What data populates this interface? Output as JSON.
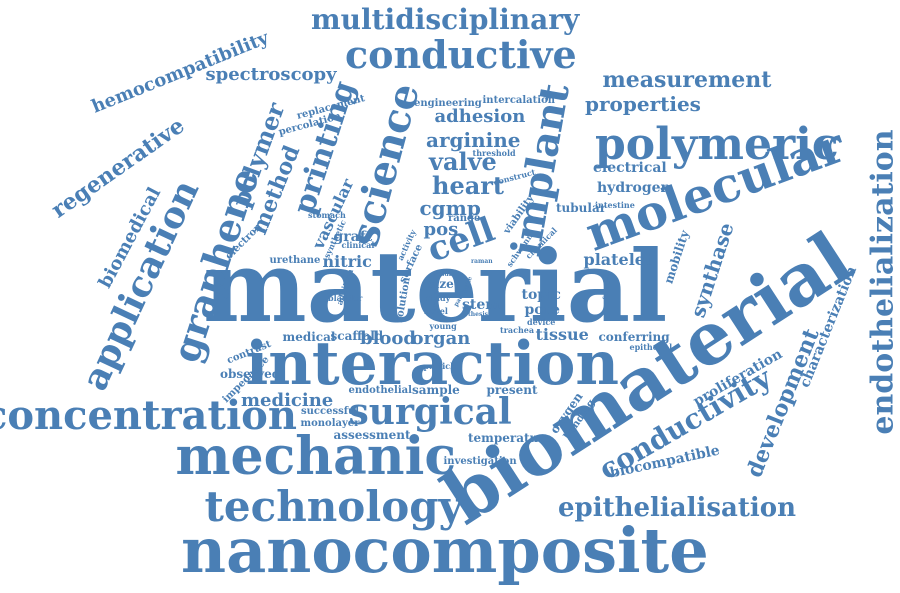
{
  "color": "#4a7fb5",
  "words": [
    {
      "key": "material",
      "text": "material"
    },
    {
      "key": "biomaterial",
      "text": "biomaterial"
    },
    {
      "key": "nanocomposite",
      "text": "nanocomposite"
    },
    {
      "key": "interaction",
      "text": "interaction"
    },
    {
      "key": "mechanic",
      "text": "mechanic"
    },
    {
      "key": "molecular",
      "text": "molecular"
    },
    {
      "key": "polymeric",
      "text": "polymeric"
    },
    {
      "key": "technology",
      "text": "technology"
    },
    {
      "key": "concentration",
      "text": "concentration"
    },
    {
      "key": "graphene",
      "text": "graphene"
    },
    {
      "key": "application",
      "text": "application"
    },
    {
      "key": "conductive",
      "text": "conductive"
    },
    {
      "key": "science",
      "text": "science"
    },
    {
      "key": "implant",
      "text": "implant"
    },
    {
      "key": "surgical",
      "text": "surgical"
    },
    {
      "key": "endothelialization",
      "text": "endothelialization"
    },
    {
      "key": "multidisciplinary",
      "text": "multidisciplinary"
    },
    {
      "key": "epithelialisation",
      "text": "epithelialisation"
    },
    {
      "key": "conductivity",
      "text": "conductivity"
    },
    {
      "key": "development",
      "text": "development"
    },
    {
      "key": "printing",
      "text": "printing"
    },
    {
      "key": "cell",
      "text": "cell"
    },
    {
      "key": "measurement",
      "text": "measurement"
    },
    {
      "key": "properties",
      "text": "properties"
    },
    {
      "key": "polymer",
      "text": "polymer"
    },
    {
      "key": "method",
      "text": "method"
    },
    {
      "key": "regenerative",
      "text": "regenerative"
    },
    {
      "key": "hemocompatibility",
      "text": "hemocompatibility"
    },
    {
      "key": "spectroscopy",
      "text": "spectroscopy"
    },
    {
      "key": "biomedical",
      "text": "biomedical"
    },
    {
      "key": "heart",
      "text": "heart"
    },
    {
      "key": "valve",
      "text": "valve"
    },
    {
      "key": "adhesion",
      "text": "adhesion"
    },
    {
      "key": "arginine",
      "text": "arginine"
    },
    {
      "key": "cgmp",
      "text": "cgmp"
    },
    {
      "key": "medicine",
      "text": "medicine"
    },
    {
      "key": "blood",
      "text": "blood"
    },
    {
      "key": "organ",
      "text": "organ"
    },
    {
      "key": "synthase",
      "text": "synthase"
    },
    {
      "key": "vascular",
      "text": "vascular"
    },
    {
      "key": "electrical",
      "text": "electrical"
    },
    {
      "key": "hydrogen",
      "text": "hydrogen"
    },
    {
      "key": "platelet",
      "text": "platelet"
    },
    {
      "key": "tissue",
      "text": "tissue"
    },
    {
      "key": "stem",
      "text": "stem"
    },
    {
      "key": "pore",
      "text": "pore"
    },
    {
      "key": "topic",
      "text": "topic"
    },
    {
      "key": "pos",
      "text": "pos"
    },
    {
      "key": "nitric",
      "text": "nitric"
    },
    {
      "key": "graft",
      "text": "graft"
    },
    {
      "key": "size",
      "text": "size"
    },
    {
      "key": "conferring",
      "text": "conferring"
    },
    {
      "key": "biocompatible",
      "text": "biocompatible"
    },
    {
      "key": "proliferation",
      "text": "proliferation"
    },
    {
      "key": "characterization",
      "text": "characterization"
    },
    {
      "key": "mobility",
      "text": "mobility"
    },
    {
      "key": "temperature",
      "text": "temperature"
    },
    {
      "key": "assessment",
      "text": "assessment"
    },
    {
      "key": "investigation",
      "text": "investigation"
    },
    {
      "key": "medical",
      "text": "medical"
    },
    {
      "key": "scaffold",
      "text": "scaffold"
    },
    {
      "key": "sample",
      "text": "sample"
    },
    {
      "key": "present",
      "text": "present"
    },
    {
      "key": "endothelial",
      "text": "endothelial"
    },
    {
      "key": "successful",
      "text": "successful"
    },
    {
      "key": "monolayer",
      "text": "monolayer"
    },
    {
      "key": "contrast",
      "text": "contrast"
    },
    {
      "key": "observed",
      "text": "observed"
    },
    {
      "key": "impedance",
      "text": "impedance"
    },
    {
      "key": "electron",
      "text": "electron"
    },
    {
      "key": "urethane",
      "text": "urethane"
    },
    {
      "key": "tubular",
      "text": "tubular"
    },
    {
      "key": "oxygen",
      "text": "oxygen"
    },
    {
      "key": "bonding",
      "text": "bonding"
    },
    {
      "key": "replacement",
      "text": "replacement"
    },
    {
      "key": "percolation",
      "text": "percolation"
    },
    {
      "key": "engineering",
      "text": "engineering"
    },
    {
      "key": "intercalation",
      "text": "intercalation"
    },
    {
      "key": "threshold",
      "text": "threshold"
    },
    {
      "key": "construct",
      "text": "construct"
    },
    {
      "key": "range",
      "text": "range"
    },
    {
      "key": "viability",
      "text": "viability"
    },
    {
      "key": "intestine",
      "text": "intestine"
    },
    {
      "key": "stomach",
      "text": "stomach"
    },
    {
      "key": "synthetic",
      "text": "synthetic"
    },
    {
      "key": "clinical",
      "text": "clinical"
    },
    {
      "key": "activity",
      "text": "activity"
    },
    {
      "key": "surface",
      "text": "surface"
    },
    {
      "key": "schwann",
      "text": "schwann"
    },
    {
      "key": "chemical",
      "text": "chemical"
    },
    {
      "key": "solution",
      "text": "solution"
    },
    {
      "key": "study",
      "text": "study"
    },
    {
      "key": "novel",
      "text": "novel"
    },
    {
      "key": "particle",
      "text": "particle"
    },
    {
      "key": "young",
      "text": "young"
    },
    {
      "key": "trachea",
      "text": "trachea"
    },
    {
      "key": "device",
      "text": "device"
    },
    {
      "key": "epithelial",
      "text": "epithelial"
    },
    {
      "key": "bladder",
      "text": "bladder"
    },
    {
      "key": "addition",
      "text": "addition"
    },
    {
      "key": "raman",
      "text": "raman"
    },
    {
      "key": "function",
      "text": "function"
    },
    {
      "key": "thesis",
      "text": "thesis"
    },
    {
      "key": "repair",
      "text": "repair"
    },
    {
      "key": "result",
      "text": "result"
    },
    {
      "key": "patient",
      "text": "patient"
    },
    {
      "key": "fluke",
      "text": "fluke"
    }
  ]
}
